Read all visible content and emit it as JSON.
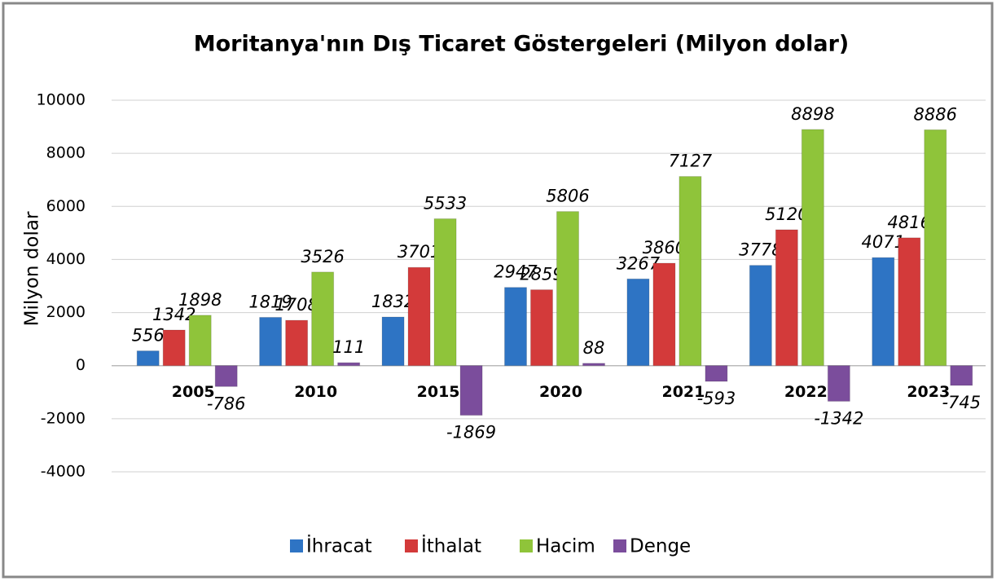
{
  "chart_data": {
    "type": "bar",
    "title": "Moritanya'nın Dış Ticaret Göstergeleri (Milyon dolar)",
    "y_label": "Milyon dolar",
    "categories": [
      "2005",
      "2010",
      "2015",
      "2020",
      "2021",
      "2022",
      "2023"
    ],
    "series": [
      {
        "name": "İhracat",
        "color": "#2e74c4",
        "values": [
          556,
          1819,
          1832,
          2947,
          3267,
          3778,
          4071
        ]
      },
      {
        "name": "İthalat",
        "color": "#d33a3a",
        "values": [
          1342,
          1708,
          3701,
          2859,
          3860,
          5120,
          4816
        ]
      },
      {
        "name": "Hacim",
        "color": "#8fc43a",
        "values": [
          1898,
          3526,
          5533,
          5806,
          7127,
          8898,
          8886
        ]
      },
      {
        "name": "Denge",
        "color": "#7b4d9c",
        "values": [
          -786,
          111,
          -1869,
          88,
          -593,
          -1342,
          -745
        ]
      }
    ],
    "ylim": [
      -4000,
      10000
    ],
    "yticks": [
      -4000,
      -2000,
      0,
      2000,
      4000,
      6000,
      8000,
      10000
    ],
    "grid": true,
    "legend": "bottom"
  }
}
